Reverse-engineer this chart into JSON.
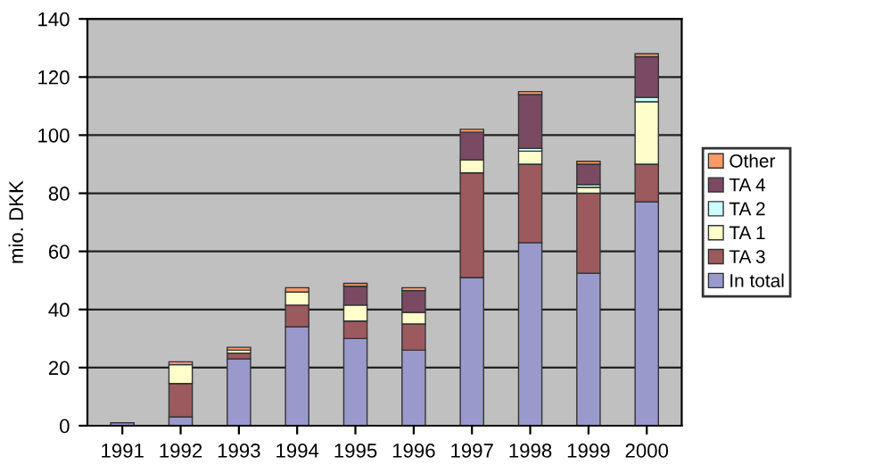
{
  "chart_data": {
    "type": "bar",
    "stacked": true,
    "ylabel": "mio. DKK",
    "categories": [
      "1991",
      "1992",
      "1993",
      "1994",
      "1995",
      "1996",
      "1997",
      "1998",
      "1999",
      "2000"
    ],
    "series": [
      {
        "name": "In total",
        "color": "#9999cc",
        "values": [
          1,
          3,
          23,
          34,
          30,
          26,
          51,
          63,
          52.5,
          77
        ]
      },
      {
        "name": "TA 3",
        "color": "#9c5a5e",
        "values": [
          null,
          11.5,
          2,
          7.5,
          6,
          9,
          36,
          27,
          27.5,
          13
        ]
      },
      {
        "name": "TA 1",
        "color": "#ffffcc",
        "values": [
          null,
          6.5,
          1,
          4.5,
          5.5,
          4,
          4.5,
          4.5,
          2,
          21.5
        ]
      },
      {
        "name": "TA 2",
        "color": "#ccffff",
        "values": [
          null,
          null,
          null,
          null,
          null,
          null,
          null,
          1,
          1,
          1.5
        ]
      },
      {
        "name": "TA 4",
        "color": "#7a4a62",
        "values": [
          null,
          null,
          null,
          null,
          6.5,
          7.5,
          9.5,
          18.5,
          7,
          14
        ]
      },
      {
        "name": "Other",
        "color": "#ff9966",
        "values": [
          null,
          1,
          1,
          1.5,
          1,
          1,
          1,
          1,
          1,
          1
        ]
      }
    ],
    "ylim": [
      0,
      140
    ],
    "yticks": [
      0,
      20,
      40,
      60,
      80,
      100,
      120,
      140
    ],
    "grid": "y",
    "legend": "right"
  }
}
